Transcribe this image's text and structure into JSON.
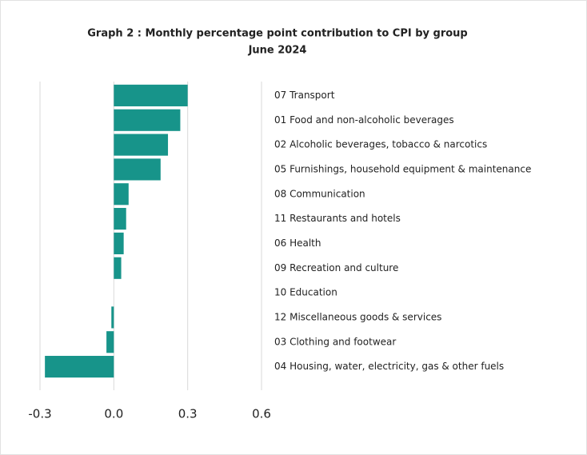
{
  "chart_data": {
    "type": "barh",
    "title": "Graph 2 : Monthly percentage point contribution to CPI by group",
    "subtitle": "June  2024",
    "categories": [
      "07 Transport",
      "01 Food and non-alcoholic beverages",
      "02 Alcoholic beverages, tobacco & narcotics",
      "05 Furnishings, household equipment & maintenance",
      "08 Communication",
      "11 Restaurants and hotels",
      "06 Health",
      "09 Recreation and culture",
      "10 Education",
      "12 Miscellaneous goods & services",
      "03 Clothing and footwear",
      "04 Housing, water, electricity, gas & other fuels"
    ],
    "values": [
      0.3,
      0.27,
      0.22,
      0.19,
      0.06,
      0.05,
      0.04,
      0.03,
      0,
      -0.01,
      -0.03,
      -0.28
    ],
    "color": "#17948a",
    "xlim": [
      -0.3,
      0.6
    ],
    "xticks": [
      -0.3,
      {
        "value": 0,
        "label": "0.0"
      },
      0.3,
      0.6
    ],
    "grid": true
  }
}
